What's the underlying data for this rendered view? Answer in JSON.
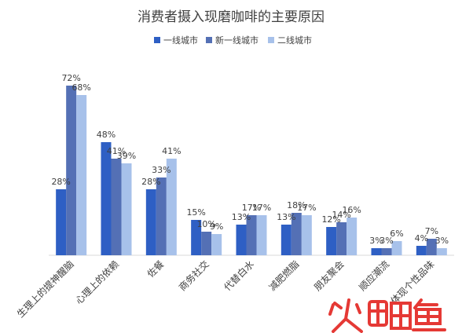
{
  "chart_data": {
    "type": "bar",
    "title": "消费者摄入现磨咖啡的主要原因",
    "categories": [
      "生理上的提神醒脑",
      "心理上的依赖",
      "佐餐",
      "商务社交",
      "代替白水",
      "减肥燃脂",
      "朋友聚会",
      "顺应潮流",
      "体现个性品味"
    ],
    "series": [
      {
        "name": "一线城市",
        "values": [
          28,
          48,
          28,
          15,
          13,
          13,
          12,
          3,
          4
        ],
        "color": "#2e5fc4"
      },
      {
        "name": "新一线城市",
        "values": [
          72,
          41,
          33,
          10,
          17,
          18,
          14,
          3,
          7
        ],
        "color": "#5470b5"
      },
      {
        "name": "二线城市",
        "values": [
          68,
          39,
          41,
          9,
          17,
          17,
          16,
          6,
          3
        ],
        "color": "#a7c1ea"
      }
    ],
    "value_suffix": "%",
    "ylim": [
      0,
      80
    ],
    "grid": false,
    "legend_position": "top-center"
  },
  "watermark": {
    "text": "火鲤鱼"
  }
}
